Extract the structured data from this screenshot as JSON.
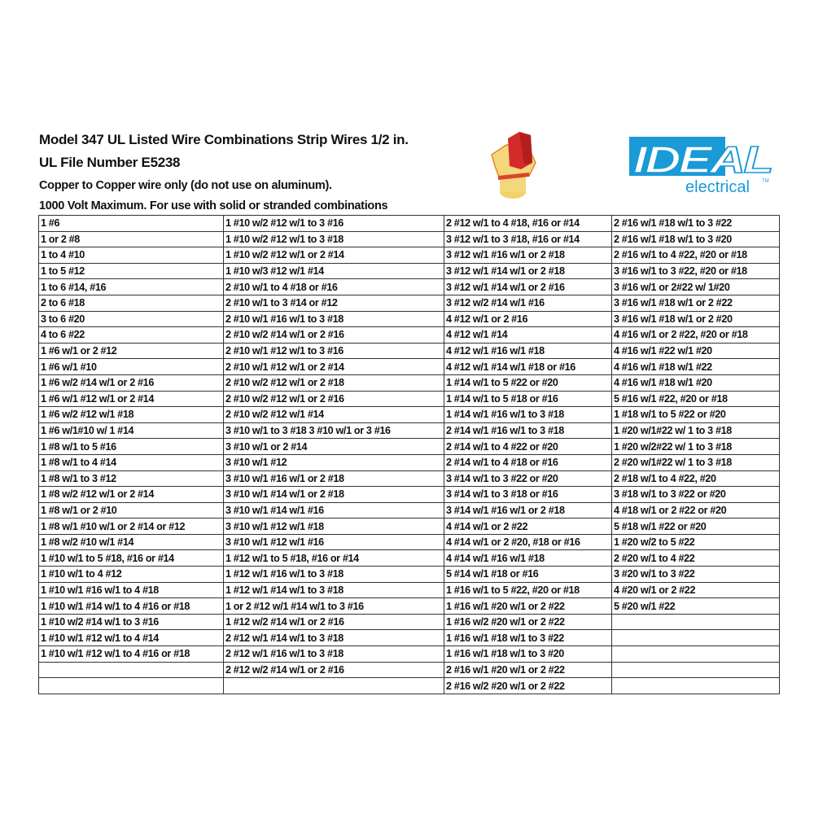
{
  "header": {
    "title_line1": "Model 347 UL Listed Wire Combinations Strip Wires 1/2 in.",
    "title_line2": "UL File Number E5238",
    "note_line1": "Copper to Copper wire only (do not use on aluminum).",
    "note_line2": "1000 Volt Maximum. For use with solid or stranded combinations"
  },
  "logo": {
    "brand": "IDEAL",
    "sub": "electrical",
    "tm": "TM",
    "brand_color": "#1a9ad6"
  },
  "product_image": {
    "icon": "wire-connector",
    "colors": [
      "#d42a2a",
      "#f3d77a"
    ]
  },
  "table": {
    "rows": [
      [
        "1 #6",
        "1 #10 w/2 #12 w/1 to 3 #16",
        "2 #12 w/1 to 4 #18, #16 or #14",
        "2 #16 w/1 #18 w/1 to 3 #22"
      ],
      [
        "1 or 2 #8",
        "1 #10 w/2 #12 w/1 to 3 #18",
        "3 #12 w/1 to 3 #18, #16 or #14",
        "2 #16 w/1 #18 w/1 to 3 #20"
      ],
      [
        "1 to 4 #10",
        "1 #10 w/2 #12 w/1 or 2 #14",
        "3 #12 w/1 #16 w/1 or 2 #18",
        "2 #16 w/1 to 4 #22, #20 or #18"
      ],
      [
        "1 to 5 #12",
        "1 #10 w/3 #12 w/1 #14",
        "3 #12 w/1 #14 w/1 or 2 #18",
        "3 #16 w/1 to 3 #22, #20 or #18"
      ],
      [
        "1 to 6 #14, #16",
        "2 #10 w/1 to 4 #18 or #16",
        "3 #12 w/1 #14 w/1 or 2 #16",
        "3 #16 w/1 or 2#22 w/ 1#20"
      ],
      [
        "2 to 6 #18",
        "2 #10 w/1 to 3 #14 or #12",
        "3 #12 w/2 #14 w/1 #16",
        "3 #16 w/1 #18 w/1 or 2 #22"
      ],
      [
        "3 to 6 #20",
        "2 #10 w/1 #16 w/1 to 3 #18",
        "4 #12 w/1 or 2 #16",
        "3 #16 w/1 #18 w/1 or 2 #20"
      ],
      [
        "4 to 6 #22",
        "2 #10 w/2 #14 w/1 or 2 #16",
        "4 #12 w/1 #14",
        "4 #16 w/1 or 2 #22, #20 or #18"
      ],
      [
        "1 #6 w/1 or 2 #12",
        "2 #10 w/1 #12 w/1 to 3 #16",
        "4 #12 w/1 #16 w/1 #18",
        "4 #16 w/1 #22 w/1 #20"
      ],
      [
        "1 #6 w/1 #10",
        "2 #10 w/1 #12 w/1 or 2 #14",
        "4 #12 w/1 #14 w/1 #18 or #16",
        "4 #16 w/1 #18 w/1 #22"
      ],
      [
        "1 #6 w/2 #14 w/1 or 2 #16",
        "2 #10 w/2 #12 w/1 or 2 #18",
        "1 #14 w/1 to 5 #22 or #20",
        "4 #16 w/1 #18 w/1 #20"
      ],
      [
        "1 #6 w/1 #12 w/1 or 2 #14",
        "2 #10 w/2 #12 w/1 or 2 #16",
        "1 #14 w/1 to 5 #18 or #16",
        "5 #16 w/1 #22, #20 or #18"
      ],
      [
        "1 #6 w/2 #12 w/1 #18",
        "2 #10 w/2 #12 w/1 #14",
        "1 #14 w/1 #16 w/1 to 3 #18",
        "1 #18 w/1 to 5 #22 or #20"
      ],
      [
        "1 #6 w/1#10 w/ 1 #14",
        "3 #10 w/1 to 3 #18 3 #10 w/1 or 3 #16",
        "2 #14 w/1 #16 w/1 to 3 #18",
        "1 #20 w/1#22 w/ 1 to 3 #18"
      ],
      [
        "1 #8 w/1 to 5 #16",
        "3 #10 w/1 or 2 #14",
        "2 #14 w/1 to 4 #22 or #20",
        "1 #20 w/2#22 w/ 1 to 3 #18"
      ],
      [
        "1 #8 w/1 to 4 #14",
        "3 #10 w/1 #12",
        "2 #14 w/1 to 4 #18 or #16",
        "2 #20 w/1#22 w/ 1 to 3 #18"
      ],
      [
        "1 #8 w/1 to 3 #12",
        "3 #10 w/1 #16 w/1 or 2 #18",
        "3 #14 w/1 to 3 #22 or #20",
        "2 #18 w/1 to 4 #22, #20"
      ],
      [
        "1 #8 w/2 #12 w/1 or 2 #14",
        "3 #10 w/1 #14 w/1 or 2 #18",
        "3 #14 w/1 to 3 #18 or #16",
        "3 #18 w/1 to 3 #22 or #20"
      ],
      [
        "1 #8 w/1 or 2 #10",
        "3 #10 w/1 #14 w/1 #16",
        "3 #14 w/1 #16 w/1 or 2 #18",
        "4 #18 w/1 or 2 #22 or #20"
      ],
      [
        "1 #8 w/1 #10 w/1 or 2 #14 or #12",
        "3 #10 w/1 #12 w/1 #18",
        "4 #14 w/1 or 2 #22",
        "5 #18 w/1 #22 or #20"
      ],
      [
        "1 #8 w/2 #10 w/1 #14",
        "3 #10 w/1 #12 w/1 #16",
        "4 #14 w/1 or 2 #20, #18 or #16",
        "1 #20 w/2 to 5 #22"
      ],
      [
        "1 #10 w/1 to 5 #18, #16 or #14",
        "1 #12 w/1 to 5 #18, #16 or #14",
        "4 #14 w/1 #16 w/1 #18",
        "2 #20 w/1 to 4 #22"
      ],
      [
        "1 #10 w/1 to 4 #12",
        "1 #12 w/1 #16 w/1 to 3 #18",
        "5 #14 w/1 #18 or #16",
        "3 #20 w/1 to 3 #22"
      ],
      [
        "1 #10 w/1 #16 w/1 to 4 #18",
        "1 #12 w/1 #14 w/1 to 3 #18",
        "1 #16 w/1 to 5 #22, #20 or #18",
        "4 #20 w/1 or 2 #22"
      ],
      [
        "1 #10 w/1 #14 w/1 to 4 #16 or #18",
        "1 or 2 #12 w/1 #14 w/1 to 3 #16",
        "1 #16 w/1 #20 w/1 or 2 #22",
        "5 #20 w/1 #22"
      ],
      [
        "1 #10 w/2 #14 w/1 to 3 #16",
        "1 #12 w/2 #14 w/1 or 2 #16",
        "1 #16 w/2 #20 w/1 or 2 #22",
        ""
      ],
      [
        "1 #10 w/1 #12 w/1 to 4 #14",
        "2 #12 w/1 #14 w/1 to 3 #18",
        "1 #16 w/1 #18 w/1 to 3 #22",
        ""
      ],
      [
        "1 #10 w/1 #12 w/1 to 4 #16 or #18",
        "2 #12 w/1 #16 w/1 to 3 #18",
        "1 #16 w/1 #18 w/1 to 3 #20",
        ""
      ],
      [
        "",
        "2 #12 w/2 #14 w/1 or 2 #16",
        "2 #16 w/1 #20 w/1 or 2 #22",
        ""
      ],
      [
        "",
        "",
        "2 #16 w/2 #20 w/1 or 2 #22",
        ""
      ]
    ]
  }
}
